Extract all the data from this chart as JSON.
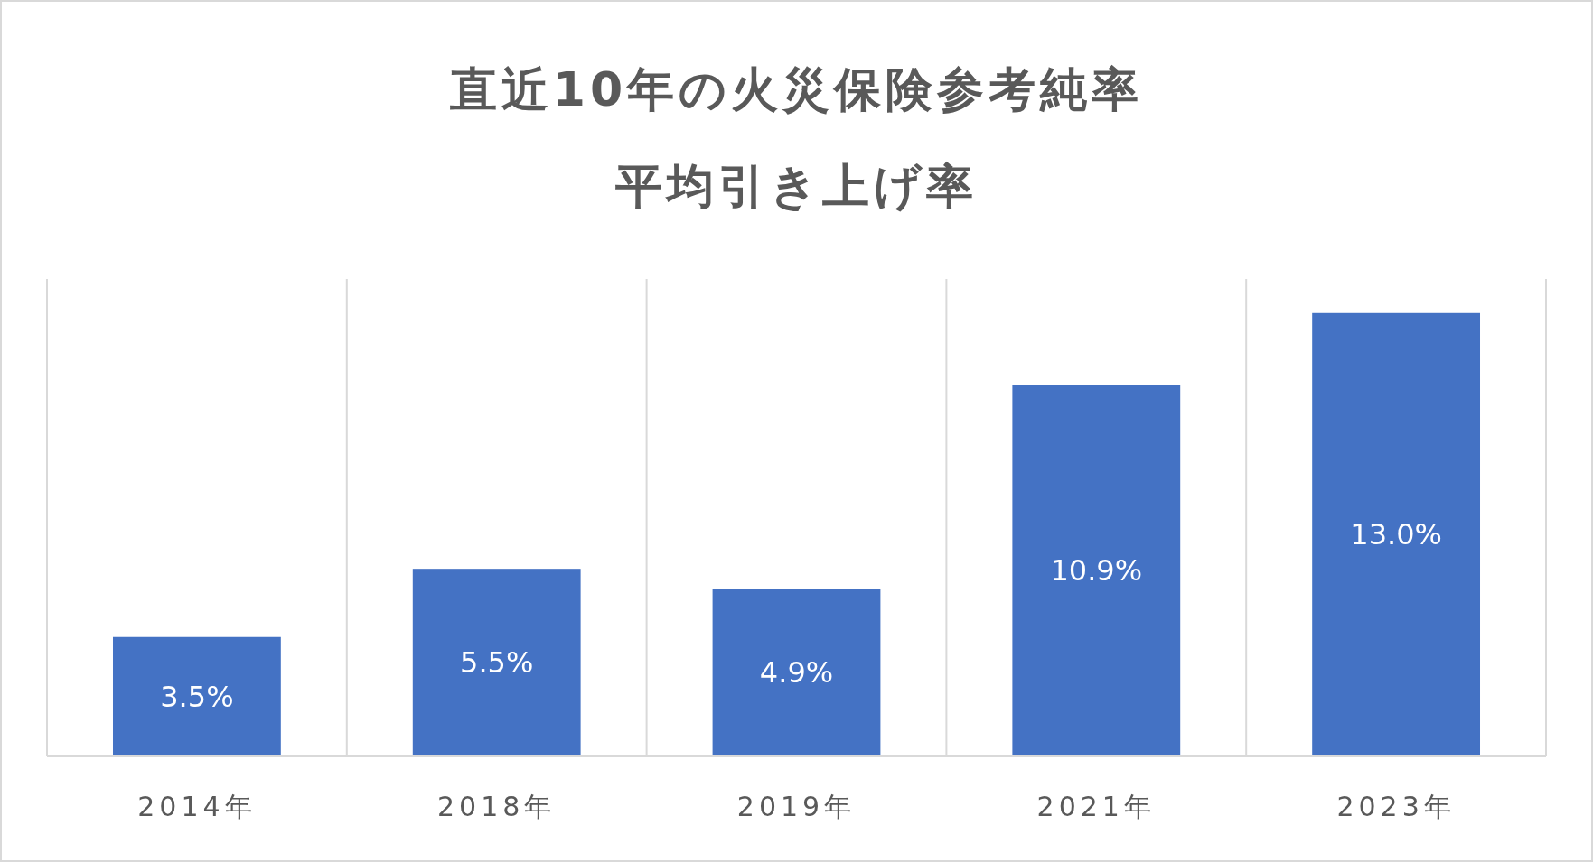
{
  "chart_data": {
    "type": "bar",
    "title": "直近10年の火災保険参考純率",
    "subtitle": "平均引き上げ率",
    "categories": [
      "2014年",
      "2018年",
      "2019年",
      "2021年",
      "2023年"
    ],
    "values": [
      3.5,
      5.5,
      4.9,
      10.9,
      13.0
    ],
    "value_labels": [
      "3.5%",
      "5.5%",
      "4.9%",
      "10.9%",
      "13.0%"
    ],
    "color": "#4472c4",
    "ylim": [
      0,
      14
    ],
    "grid": "x"
  }
}
